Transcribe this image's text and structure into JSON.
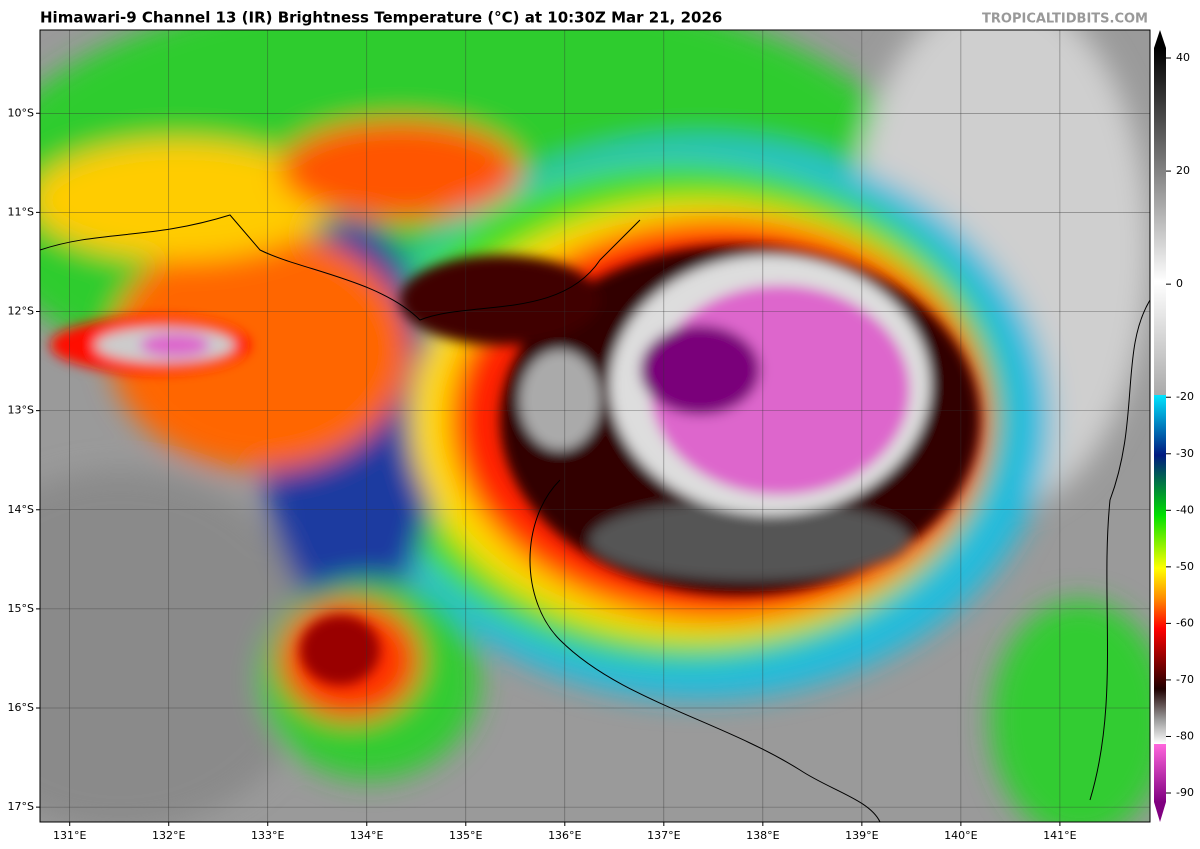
{
  "map": {
    "title": "Himawari-9 Channel 13 (IR) Brightness Temperature (°C) at 10:30Z Mar 21, 2026",
    "source": "TROPICALTIDBITS.COM",
    "lat_range": [
      -9.16,
      -17.15
    ],
    "lon_range": [
      130.7,
      141.91
    ],
    "lat_ticks": [
      {
        "value": -10,
        "label": "10°S"
      },
      {
        "value": -11,
        "label": "11°S"
      },
      {
        "value": -12,
        "label": "12°S"
      },
      {
        "value": -13,
        "label": "13°S"
      },
      {
        "value": -14,
        "label": "14°S"
      },
      {
        "value": -15,
        "label": "15°S"
      },
      {
        "value": -16,
        "label": "16°S"
      },
      {
        "value": -17,
        "label": "17°S"
      }
    ],
    "lon_ticks": [
      {
        "value": 131,
        "label": "131°E"
      },
      {
        "value": 132,
        "label": "132°E"
      },
      {
        "value": 133,
        "label": "133°E"
      },
      {
        "value": 134,
        "label": "134°E"
      },
      {
        "value": 135,
        "label": "135°E"
      },
      {
        "value": 136,
        "label": "136°E"
      },
      {
        "value": 137,
        "label": "137°E"
      },
      {
        "value": 138,
        "label": "138°E"
      },
      {
        "value": 139,
        "label": "139°E"
      },
      {
        "value": 140,
        "label": "140°E"
      },
      {
        "value": 141,
        "label": "141°E"
      }
    ],
    "colorbar": {
      "range": [
        -90,
        40
      ],
      "ticks": [
        40,
        20,
        0,
        -20,
        -30,
        -40,
        -50,
        -60,
        -70,
        -80,
        -90
      ]
    }
  }
}
